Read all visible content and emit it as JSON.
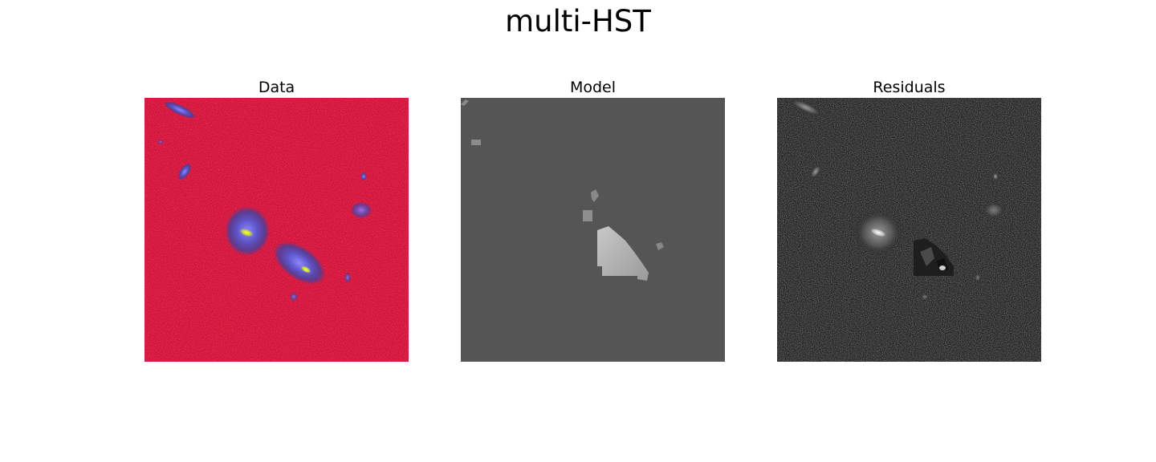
{
  "figure": {
    "title": "multi-HST"
  },
  "panels": [
    {
      "title": "Data"
    },
    {
      "title": "Model"
    },
    {
      "title": "Residuals"
    }
  ],
  "colors": {
    "data_background": "#d21028",
    "data_source": "#6a63d8",
    "data_core": "#f2f020",
    "model_background": "#555555",
    "model_source": "#b0b0b0",
    "residual_background": "#262626",
    "residual_source": "#e8e8e8"
  }
}
